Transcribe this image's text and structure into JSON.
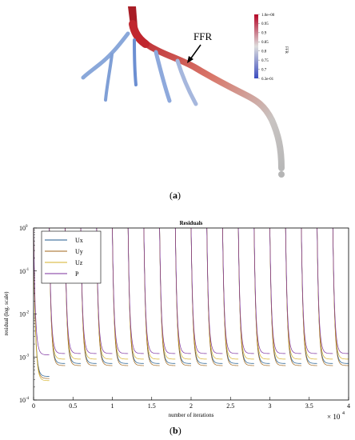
{
  "panel_a": {
    "label": "a",
    "annotation": "FFR",
    "colorbar": {
      "title": "FFR",
      "ticks": [
        "1.0e+00",
        "0.95",
        "0.9",
        "0.85",
        "0.8",
        "0.75",
        "0.7",
        "6.3e-01"
      ],
      "low_color": "#3b4cc0",
      "mid_color": "#dddddd",
      "high_color": "#b40426"
    }
  },
  "panel_b": {
    "label": "b"
  },
  "chart_data": {
    "type": "line",
    "title": "Residuals",
    "xlabel": "number of iterations",
    "ylabel": "residual (log. scale)",
    "x_multiplier_label": "× 10",
    "x_multiplier_exponent": "4",
    "xlim": [
      0,
      4
    ],
    "ylim_exponents": [
      -4,
      0
    ],
    "y_log_scale": true,
    "x_tick_labels": [
      "0",
      "0.5",
      "1",
      "1.5",
      "2",
      "2.5",
      "3",
      "3.5",
      "4"
    ],
    "y_tick_labels": [
      {
        "base": "10",
        "exp": "0"
      },
      {
        "base": "10",
        "exp": "-1"
      },
      {
        "base": "10",
        "exp": "-2"
      },
      {
        "base": "10",
        "exp": "-3"
      },
      {
        "base": "10",
        "exp": "-4"
      }
    ],
    "legend_position": "top-left",
    "cycle_period": 0.2,
    "cycles": 20,
    "series": [
      {
        "name": "Ux",
        "color": "#1f5a8c",
        "first_floor_exp": -3.45,
        "floor_exp": -3.15
      },
      {
        "name": "Uy",
        "color": "#a0661a",
        "first_floor_exp": -3.5,
        "floor_exp": -3.2
      },
      {
        "name": "Uz",
        "color": "#d6b22a",
        "first_floor_exp": -3.55,
        "floor_exp": -3.05
      },
      {
        "name": "P",
        "color": "#7b2f9e",
        "first_floor_exp": -2.95,
        "floor_exp": -2.92
      }
    ]
  }
}
